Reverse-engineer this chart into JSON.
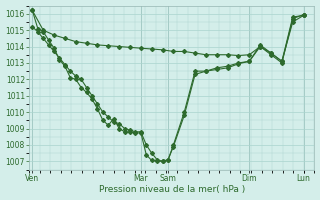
{
  "background_color": "#d4eeea",
  "grid_color": "#aad4ce",
  "line_color": "#2d6a2d",
  "marker_color": "#2d6a2d",
  "title": "Pression niveau de la mer( hPa )",
  "ylim": [
    1006.5,
    1016.5
  ],
  "ytick_vals": [
    1007,
    1008,
    1009,
    1010,
    1011,
    1012,
    1013,
    1014,
    1015,
    1016
  ],
  "day_labels": [
    "Ven",
    "Mar",
    "Sam",
    "Dim",
    "Lun"
  ],
  "day_positions": [
    0,
    10,
    12.5,
    20,
    25
  ],
  "xlim": [
    -0.3,
    26
  ],
  "series1_x": [
    0,
    0.5,
    1,
    1.5,
    2,
    2.5,
    3,
    3.5,
    4,
    4.5,
    5,
    5.5,
    6,
    6.5,
    7,
    7.5,
    8,
    8.5,
    9,
    9.5,
    10,
    10.5,
    11,
    11.5,
    12,
    12.5,
    13,
    14,
    15,
    16,
    17,
    18,
    19,
    20,
    21,
    22,
    23,
    24,
    25
  ],
  "series1_y": [
    1016.2,
    1015.1,
    1014.9,
    1014.4,
    1013.9,
    1013.2,
    1012.8,
    1012.1,
    1012.0,
    1011.5,
    1011.2,
    1010.8,
    1010.2,
    1009.5,
    1009.2,
    1009.6,
    1009.0,
    1008.8,
    1008.8,
    1008.7,
    1008.75,
    1007.4,
    1007.05,
    1007.0,
    1007.0,
    1007.05,
    1008.0,
    1010.0,
    1012.5,
    1012.5,
    1012.7,
    1012.8,
    1013.0,
    1013.1,
    1014.1,
    1013.6,
    1013.1,
    1015.8,
    1015.9
  ],
  "series2_x": [
    0,
    0.5,
    1,
    1.5,
    2,
    2.5,
    3,
    3.5,
    4,
    4.5,
    5,
    5.5,
    6,
    6.5,
    7,
    7.5,
    8,
    8.5,
    9,
    9.5,
    10,
    10.5,
    11,
    11.5,
    12,
    12.5,
    13,
    14,
    15,
    16,
    17,
    18,
    19,
    20,
    21,
    22,
    23,
    24,
    25
  ],
  "series2_y": [
    1015.2,
    1014.9,
    1014.5,
    1014.1,
    1013.7,
    1013.3,
    1012.9,
    1012.5,
    1012.2,
    1012.0,
    1011.5,
    1011.0,
    1010.5,
    1010.0,
    1009.7,
    1009.4,
    1009.3,
    1009.0,
    1008.9,
    1008.8,
    1008.8,
    1008.0,
    1007.5,
    1007.1,
    1007.0,
    1007.1,
    1007.9,
    1009.8,
    1012.3,
    1012.5,
    1012.6,
    1012.7,
    1012.95,
    1013.1,
    1014.0,
    1013.5,
    1013.0,
    1015.7,
    1015.95
  ],
  "series3_x": [
    0,
    1,
    2,
    3,
    4,
    5,
    6,
    7,
    8,
    9,
    10,
    11,
    12,
    13,
    14,
    15,
    16,
    17,
    18,
    19,
    20,
    21,
    22,
    23,
    24,
    25
  ],
  "series3_y": [
    1016.2,
    1015.0,
    1014.7,
    1014.5,
    1014.3,
    1014.2,
    1014.1,
    1014.05,
    1014.0,
    1013.95,
    1013.9,
    1013.85,
    1013.8,
    1013.7,
    1013.7,
    1013.6,
    1013.5,
    1013.5,
    1013.5,
    1013.45,
    1013.5,
    1014.0,
    1013.6,
    1013.1,
    1015.5,
    1015.9
  ],
  "fontsize_ticks": 5.5,
  "fontsize_label": 6.5,
  "marker_size": 2.0,
  "line_width": 0.8
}
